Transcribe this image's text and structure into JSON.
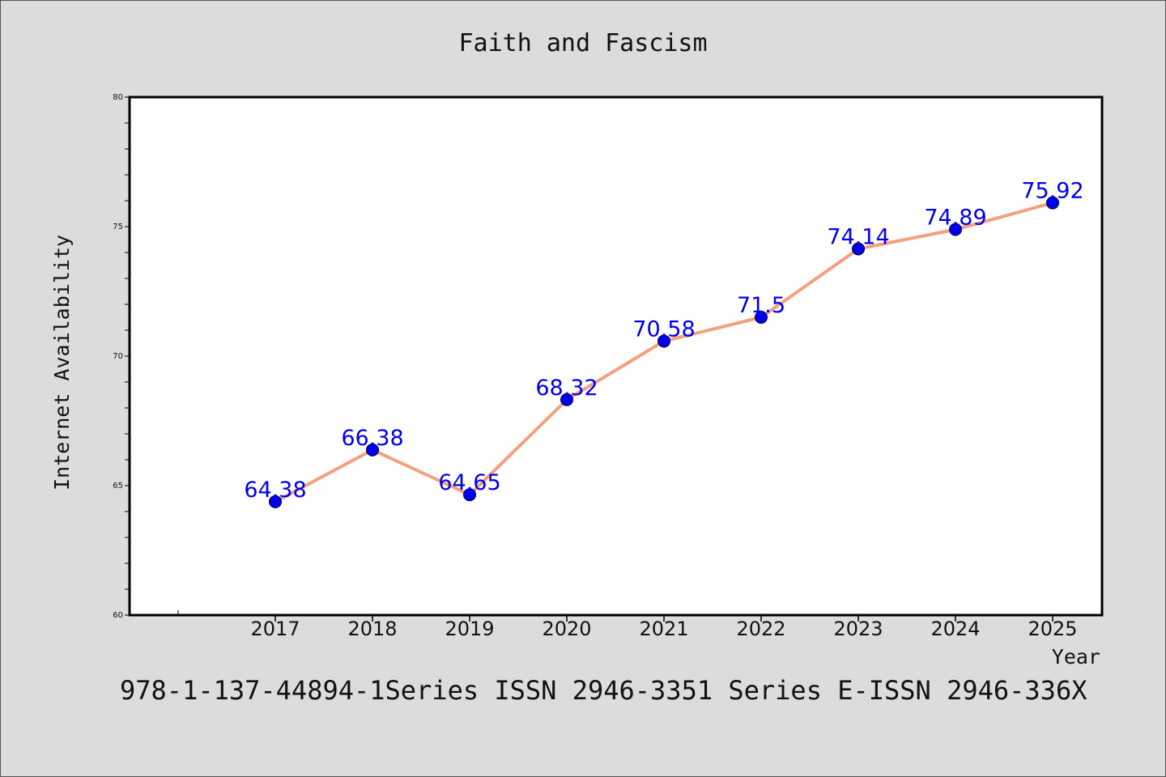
{
  "colors": {
    "background": "#dcdcdc",
    "plot_background": "#ffffff",
    "line": "#f4a07e",
    "marker": "#0000ee",
    "data_label": "#0000ee"
  },
  "footnote": "978-1-137-44894-1Series ISSN 2946-3351 Series E-ISSN 2946-336X",
  "chart_data": {
    "type": "line",
    "title": "Faith and Fascism",
    "xlabel": "Year",
    "ylabel": "Internet Availability",
    "categories": [
      "2017",
      "2018",
      "2019",
      "2020",
      "2021",
      "2022",
      "2023",
      "2024",
      "2025"
    ],
    "values": [
      64.38,
      66.38,
      64.65,
      68.32,
      70.58,
      71.5,
      74.14,
      74.89,
      75.92
    ],
    "data_labels": [
      "64.38",
      "66.38",
      "64.65",
      "68.32",
      "70.58",
      "71.5",
      "74.14",
      "74.89",
      "75.92"
    ],
    "ylim": [
      60,
      80
    ],
    "yticks": [
      60,
      65,
      70,
      75,
      80
    ],
    "ytick_labels": [
      "60",
      "65",
      "70",
      "75",
      "80"
    ],
    "grid": false,
    "legend": "none"
  }
}
